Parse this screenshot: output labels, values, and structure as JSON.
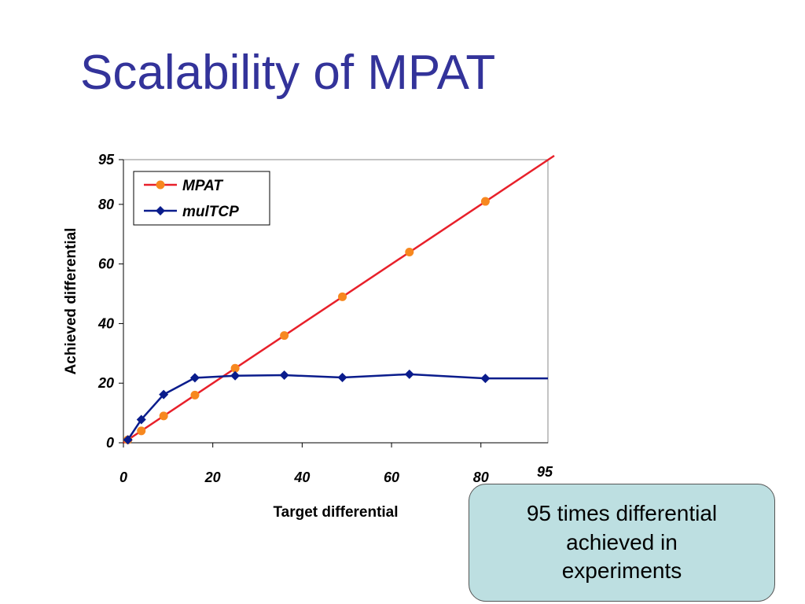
{
  "slide": {
    "title": "Scalability of MPAT",
    "callout_text": "95 times differential achieved in experiments"
  },
  "colors": {
    "title": "#33339a",
    "mpat_line": "#e8202a",
    "mpat_marker": "#f7881f",
    "multcp": "#0a1c8c",
    "callout_bg": "#bddfe1"
  },
  "chart_data": {
    "type": "line",
    "xlabel": "Target differential",
    "ylabel": "Achieved differential",
    "xlim": [
      0,
      95
    ],
    "ylim": [
      0,
      95
    ],
    "x_ticks": [
      "0",
      "20",
      "40",
      "60",
      "80",
      "95"
    ],
    "y_ticks": [
      "0",
      "20",
      "40",
      "60",
      "80",
      "95"
    ],
    "grid": false,
    "legend_position": "top-left",
    "series": [
      {
        "name": "MPAT",
        "line": {
          "x": [
            0,
            95
          ],
          "y": [
            0,
            95
          ]
        },
        "x": [
          1,
          4,
          9,
          16,
          25,
          36,
          49,
          64,
          81
        ],
        "y": [
          1,
          4,
          9,
          16,
          25,
          36,
          49,
          64,
          81
        ]
      },
      {
        "name": "mulTCP",
        "x": [
          1,
          4,
          9,
          16,
          25,
          36,
          49,
          64,
          81,
          95
        ],
        "y": [
          1,
          7.8,
          16.2,
          21.8,
          22.5,
          22.7,
          21.9,
          23,
          21.6,
          21.6
        ]
      }
    ]
  }
}
